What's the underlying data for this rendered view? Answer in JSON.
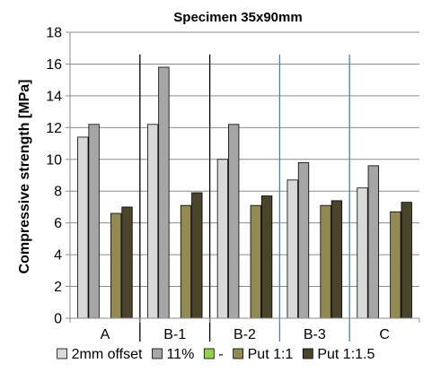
{
  "chart_data": {
    "type": "bar",
    "title": "Specimen 35x90mm",
    "xlabel": "",
    "ylabel": "Compressive strength [MPa]",
    "ylim": [
      0,
      18
    ],
    "ytick_step": 2,
    "grid": true,
    "legend_position": "bottom",
    "categories": [
      "A",
      "B-1",
      "B-2",
      "B-3",
      "C"
    ],
    "series": [
      {
        "name": "2mm offset",
        "color": "#d9d9d9",
        "values": [
          11.4,
          12.2,
          10.0,
          8.7,
          8.2
        ]
      },
      {
        "name": "11%",
        "color": "#a6a6a6",
        "values": [
          12.2,
          15.8,
          12.2,
          9.8,
          9.6
        ]
      },
      {
        "name": "-",
        "color": "#92d050",
        "values": [
          null,
          null,
          null,
          null,
          null
        ]
      },
      {
        "name": "Put 1:1",
        "color": "#938953",
        "values": [
          6.6,
          7.1,
          7.1,
          7.1,
          6.7
        ]
      },
      {
        "name": "Put 1:1.5",
        "color": "#4a452a",
        "values": [
          7.0,
          7.9,
          7.7,
          7.4,
          7.3
        ]
      }
    ],
    "separators": [
      {
        "after_category": "A",
        "color": "#000000"
      },
      {
        "after_category": "B-1",
        "color": "#000000"
      },
      {
        "after_category": "B-2",
        "color": "#4a7ebb"
      },
      {
        "after_category": "B-3",
        "color": "#4a7ebb"
      }
    ]
  }
}
